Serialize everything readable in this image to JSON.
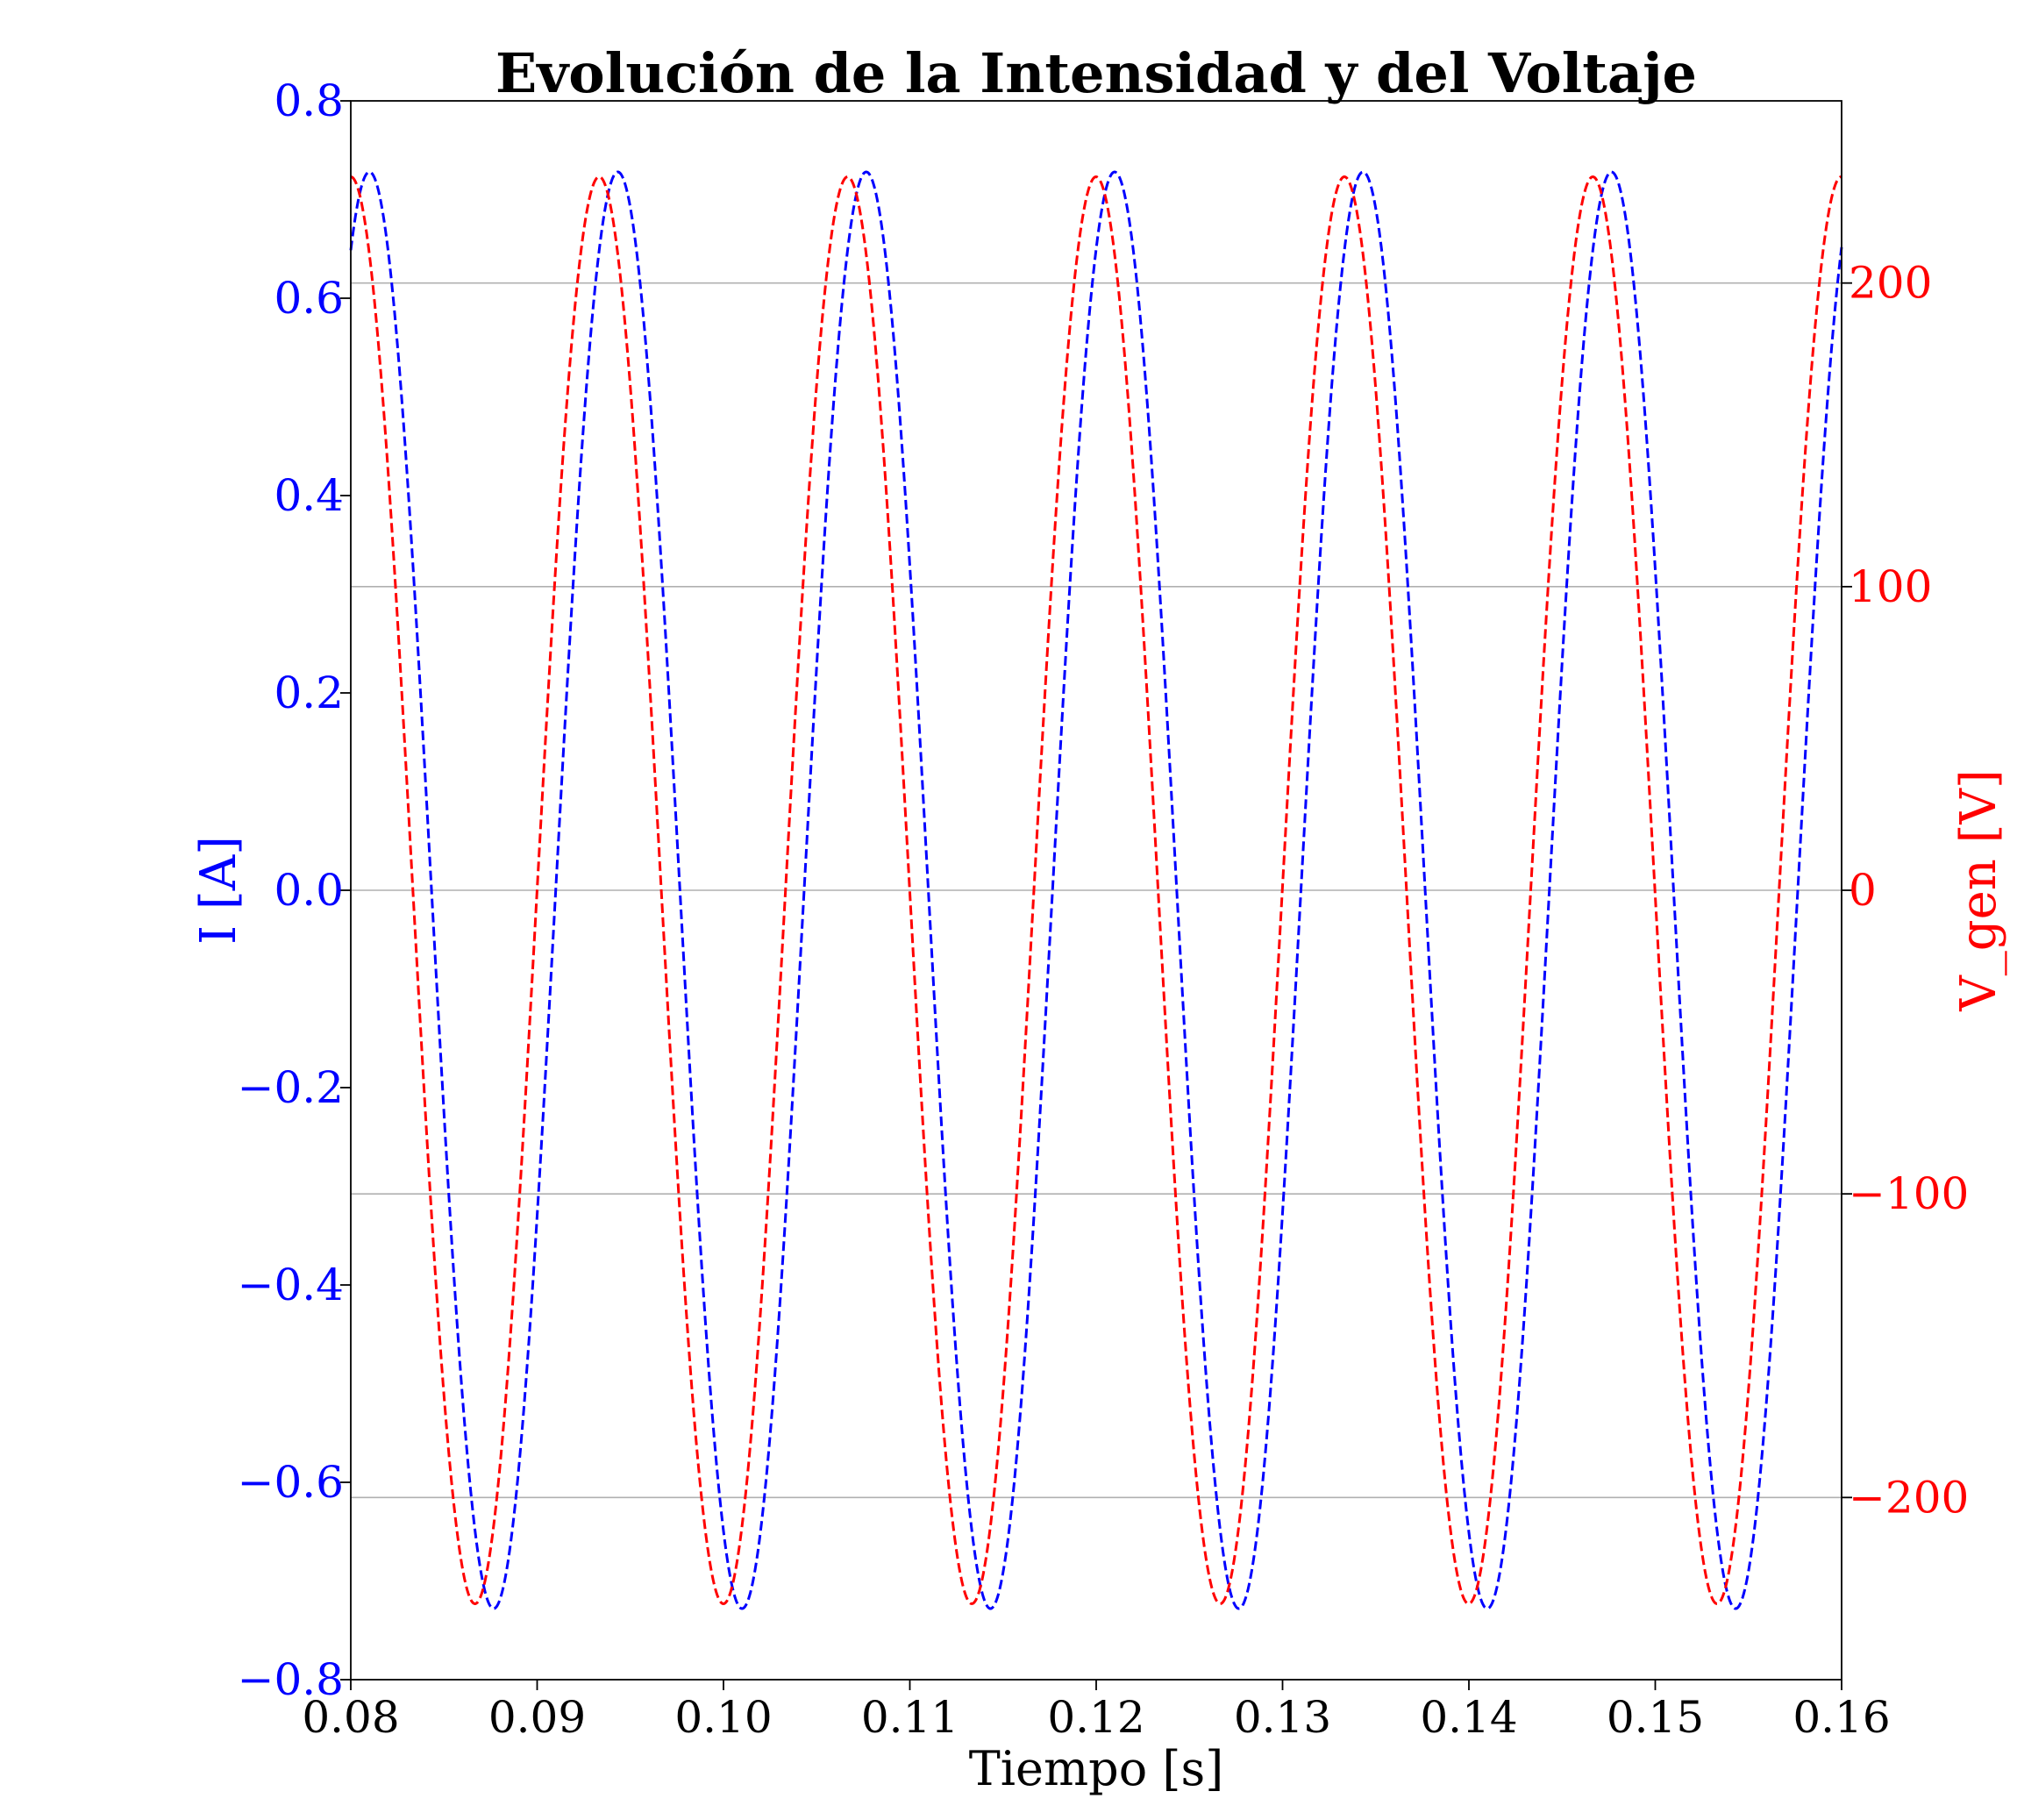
{
  "chart_data": {
    "type": "line",
    "title": "Evolución de la Intensidad y del Voltaje",
    "xlabel": "Tiempo [s]",
    "ylabel_left": "I [A]",
    "ylabel_right": "V_gen [V]",
    "xlim": [
      0.08,
      0.16
    ],
    "ylim_left": [
      -0.8,
      0.8
    ],
    "ylim_right": [
      -260,
      260
    ],
    "x_ticks": [
      "0.08",
      "0.09",
      "0.10",
      "0.11",
      "0.12",
      "0.13",
      "0.14",
      "0.15",
      "0.16"
    ],
    "y_left_ticks": [
      "0.8",
      "0.6",
      "0.4",
      "0.2",
      "0.0",
      "−0.2",
      "−0.4",
      "−0.6",
      "−0.8"
    ],
    "y_right_ticks": [
      "200",
      "100",
      "0",
      "−100",
      "−200"
    ],
    "grid": "horizontal, right axis",
    "colors": {
      "current": "#0000ff",
      "voltage": "#ff0000",
      "grid": "#b0b0b0"
    },
    "series": [
      {
        "axis": "left",
        "color": "#0000ff",
        "style": "dashed",
        "shape": "sine",
        "amplitude": 0.728,
        "period": 0.01333,
        "peak_times": [
          0.081,
          0.0943,
          0.1077,
          0.121,
          0.1343,
          0.1477
        ]
      },
      {
        "axis": "right",
        "color": "#ff0000",
        "style": "dashed",
        "shape": "sine",
        "amplitude": 235,
        "period": 0.01333,
        "peak_times": [
          0.08,
          0.0933,
          0.1067,
          0.12,
          0.1333,
          0.1467,
          0.16
        ]
      }
    ]
  }
}
